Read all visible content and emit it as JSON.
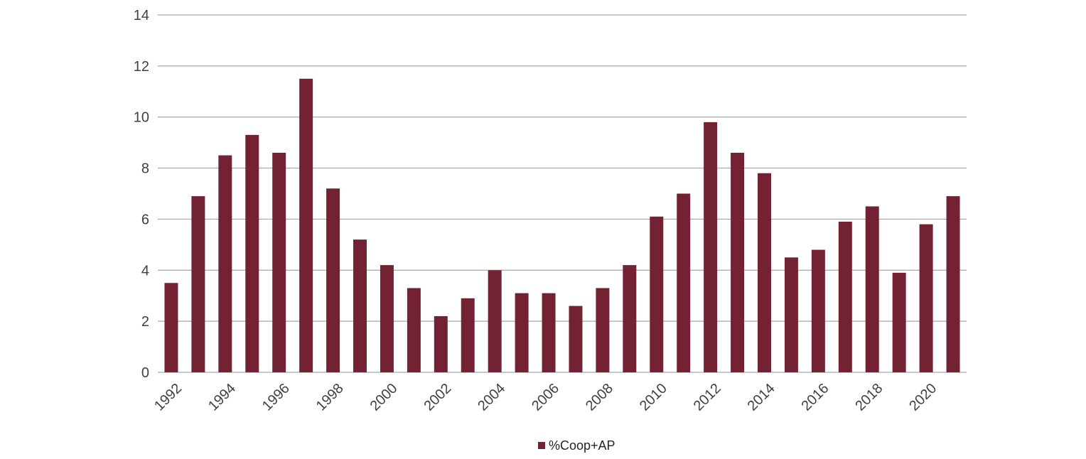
{
  "chart_data": {
    "type": "bar",
    "title": "",
    "xlabel": "",
    "ylabel": "",
    "categories": [
      "1992",
      "1993",
      "1994",
      "1995",
      "1996",
      "1997",
      "1998",
      "1999",
      "2000",
      "2001",
      "2002",
      "2003",
      "2004",
      "2005",
      "2006",
      "2007",
      "2008",
      "2009",
      "2010",
      "2011",
      "2012",
      "2013",
      "2014",
      "2015",
      "2016",
      "2017",
      "2018",
      "2019",
      "2020",
      "2021"
    ],
    "x_tick_labels": [
      "1992",
      "1994",
      "1996",
      "1998",
      "2000",
      "2002",
      "2004",
      "2006",
      "2008",
      "2010",
      "2012",
      "2014",
      "2016",
      "2018",
      "2020"
    ],
    "series": [
      {
        "name": "%Coop+AP",
        "color": "#722232",
        "values": [
          3.5,
          6.9,
          8.5,
          9.3,
          8.6,
          11.5,
          7.2,
          5.2,
          4.2,
          3.3,
          2.2,
          2.9,
          4.0,
          3.1,
          3.1,
          2.6,
          3.3,
          4.2,
          6.1,
          7.0,
          9.8,
          8.6,
          7.8,
          4.5,
          4.8,
          5.9,
          6.5,
          3.9,
          5.8,
          6.9
        ]
      }
    ],
    "ylim": [
      0,
      14
    ],
    "y_ticks": [
      0,
      2,
      4,
      6,
      8,
      10,
      12,
      14
    ],
    "grid": true,
    "gridline_color": "#a6a6a6",
    "legend": "bottom-center"
  }
}
